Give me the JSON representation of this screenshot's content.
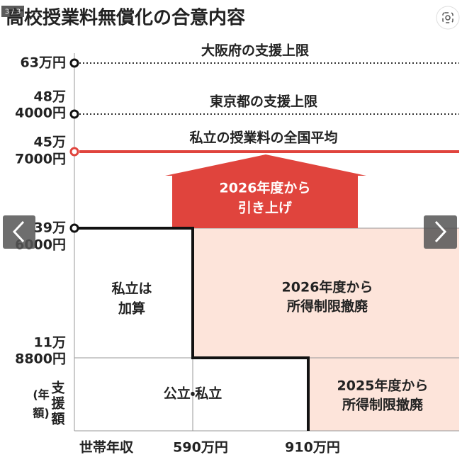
{
  "header": {
    "title": "高校授業料無償化の合意内容",
    "counter": "3 / 3"
  },
  "axis": {
    "y_labels": [
      "63万円",
      "48万",
      "4000円",
      "45万",
      "7000円",
      "39万",
      "6000円",
      "11万",
      "8800円"
    ],
    "y_title": [
      "支",
      "援",
      "額",
      "(年",
      "額)"
    ],
    "x_labels": [
      "世帯年収",
      "590万円",
      "910万円"
    ]
  },
  "lines": [
    "大阪府の支援上限",
    "東京都の支援上限",
    "私立の授業料の全国平均"
  ],
  "arrow": [
    "2026年度から",
    "引き上げ"
  ],
  "areas": {
    "private_add": [
      "私立は",
      "加算"
    ],
    "upper": [
      "2026年度から",
      "所得制限撤廃"
    ],
    "both": "公立・私立",
    "lower": [
      "2025年度から",
      "所得制限撤廃"
    ]
  }
}
